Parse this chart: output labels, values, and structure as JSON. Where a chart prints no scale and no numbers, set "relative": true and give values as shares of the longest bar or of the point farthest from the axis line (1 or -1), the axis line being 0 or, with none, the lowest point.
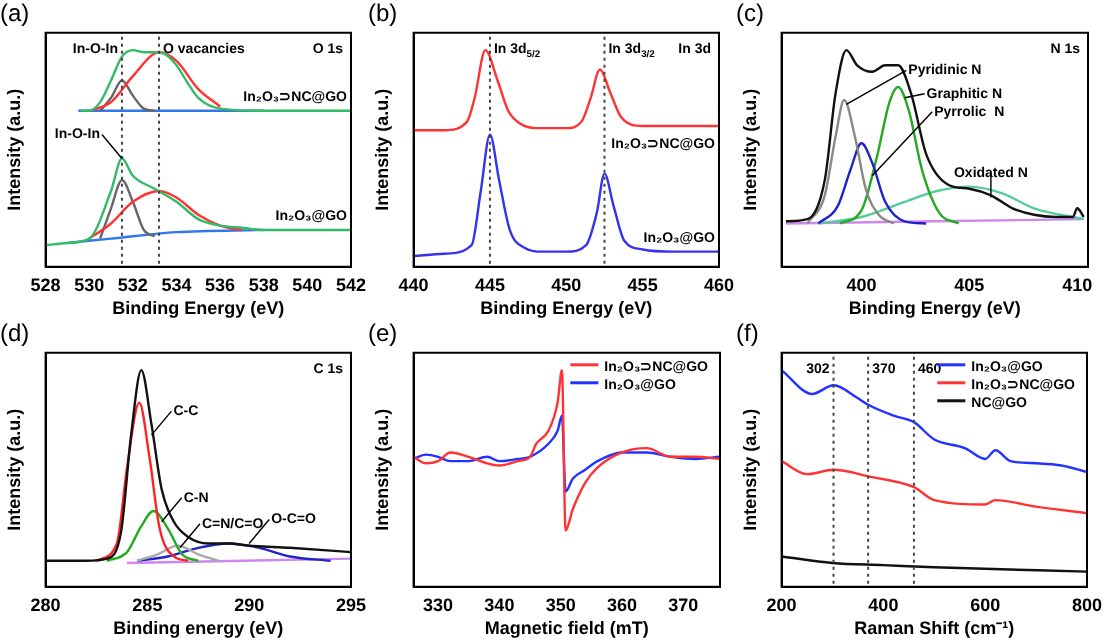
{
  "chart_data": [
    {
      "type": "line",
      "title": "(a)",
      "xlabel": "Binding Energy (eV)",
      "ylabel": "Intensity (a.u.)",
      "relative": true,
      "xlim": [
        528,
        542
      ],
      "xticks": [
        528,
        530,
        532,
        534,
        536,
        538,
        540,
        542
      ],
      "annotations": [
        "O 1s",
        {
          "text": "In-O-In",
          "x": 531.5,
          "y": 0.5
        }
      ],
      "ref_lines": [
        {
          "axis": "x",
          "value": 531.5,
          "label": "In-O-In",
          "line_style": "dotted"
        },
        {
          "axis": "x",
          "value": 533.2,
          "label": "O vacancies",
          "line_style": "dotted"
        }
      ],
      "series": [
        {
          "name": "In₂O₃⊃NC@GO",
          "color": "#33bb66",
          "x": [
            529.6,
            530,
            530.5,
            531,
            531.5,
            532,
            532.5,
            533,
            533.5,
            534,
            534.5,
            535,
            536,
            538,
            542
          ],
          "values": [
            0.72,
            0.72,
            0.76,
            0.86,
            0.97,
            1.0,
            0.99,
            0.99,
            0.98,
            0.93,
            0.85,
            0.78,
            0.73,
            0.72,
            0.72
          ]
        },
        {
          "color": "#ff3333",
          "x": [
            530,
            531,
            532,
            533.2,
            534,
            535,
            536
          ],
          "values": [
            0.72,
            0.76,
            0.88,
            0.99,
            0.95,
            0.82,
            0.74
          ]
        },
        {
          "color": "#666666",
          "x": [
            530.5,
            531,
            531.5,
            532,
            532.5,
            533
          ],
          "values": [
            0.72,
            0.78,
            0.86,
            0.79,
            0.73,
            0.72
          ]
        },
        {
          "color": "#3377ee",
          "x": [
            529.5,
            538
          ],
          "values": [
            0.72,
            0.72
          ]
        },
        {
          "name": "In₂O₃@GO",
          "color": "#33bb66",
          "x": [
            528,
            529,
            530,
            531,
            531.5,
            532,
            533,
            534,
            535,
            536,
            537,
            538,
            540,
            542
          ],
          "values": [
            0.1,
            0.11,
            0.13,
            0.35,
            0.5,
            0.42,
            0.36,
            0.3,
            0.22,
            0.19,
            0.18,
            0.17,
            0.17,
            0.17
          ]
        },
        {
          "color": "#ff3333",
          "x": [
            530,
            531,
            532,
            533.2,
            534,
            535,
            536,
            537
          ],
          "values": [
            0.13,
            0.2,
            0.3,
            0.35,
            0.32,
            0.24,
            0.19,
            0.17
          ]
        },
        {
          "color": "#666666",
          "x": [
            530.5,
            531,
            531.5,
            532,
            532.5,
            533
          ],
          "values": [
            0.13,
            0.27,
            0.4,
            0.3,
            0.17,
            0.14
          ]
        },
        {
          "color": "#3377ee",
          "x": [
            529,
            531,
            534,
            538
          ],
          "values": [
            0.11,
            0.13,
            0.16,
            0.17
          ]
        }
      ]
    },
    {
      "type": "line",
      "title": "(b)",
      "xlabel": "Binding Energy (eV)",
      "ylabel": "Intensity (a.u.)",
      "relative": true,
      "xlim": [
        440,
        460
      ],
      "xticks": [
        440,
        445,
        450,
        455,
        460
      ],
      "annotations": [
        "In 3d"
      ],
      "ref_lines": [
        {
          "axis": "x",
          "value": 445,
          "label": "In 3d$_{5/2}$",
          "line_style": "dotted"
        },
        {
          "axis": "x",
          "value": 452.5,
          "label": "In 3d$_{3/2}$",
          "line_style": "dotted"
        }
      ],
      "series": [
        {
          "name": "In₂O₃⊃NC@GO",
          "color": "#ff3333",
          "x": [
            440,
            442,
            443.5,
            444,
            444.7,
            445.5,
            446.2,
            447,
            448,
            450,
            451,
            451.6,
            452.2,
            452.9,
            453.6,
            455,
            457,
            460
          ],
          "values": [
            0.63,
            0.63,
            0.67,
            0.78,
            1.0,
            0.86,
            0.72,
            0.66,
            0.64,
            0.64,
            0.67,
            0.78,
            0.91,
            0.8,
            0.69,
            0.65,
            0.65,
            0.65
          ]
        },
        {
          "name": "In₂O₃@GO",
          "color": "#3333ee",
          "x": [
            440,
            442,
            443.8,
            444.4,
            445,
            445.6,
            446.3,
            447.2,
            448.5,
            450,
            451.3,
            452,
            452.5,
            453.1,
            453.8,
            455,
            457,
            460
          ],
          "values": [
            0.05,
            0.06,
            0.1,
            0.35,
            0.61,
            0.4,
            0.17,
            0.09,
            0.07,
            0.07,
            0.1,
            0.25,
            0.43,
            0.28,
            0.12,
            0.08,
            0.07,
            0.07
          ]
        }
      ]
    },
    {
      "type": "line",
      "title": "(c)",
      "xlabel": "Binding Energy (eV)",
      "ylabel": "Intensity (a.u.)",
      "relative": true,
      "xlim": [
        396.3,
        410.5
      ],
      "xticks": [
        400,
        405,
        410
      ],
      "annotations": [
        "N 1s",
        {
          "text": "Pyridinic N",
          "x": 399.3,
          "y": 0.75
        },
        {
          "text": "Graphitic N",
          "x": 402,
          "y": 0.78
        },
        {
          "text": "Pyrrolic  N",
          "x": 400.5,
          "y": 0.42
        },
        {
          "text": "Oxidated N",
          "x": 406,
          "y": 0.32
        }
      ],
      "series": [
        {
          "color": "#111111",
          "x": [
            396.5,
            397.5,
            398.3,
            398.8,
            399.3,
            399.8,
            400.5,
            401.1,
            401.7,
            402.3,
            403,
            404,
            405,
            406,
            407,
            408,
            409,
            409.8,
            410,
            410.3
          ],
          "values": [
            0.21,
            0.22,
            0.4,
            0.8,
            1.0,
            0.93,
            0.9,
            0.93,
            0.93,
            0.8,
            0.52,
            0.38,
            0.36,
            0.33,
            0.27,
            0.24,
            0.23,
            0.23,
            0.27,
            0.23
          ]
        },
        {
          "color": "#888888",
          "x": [
            397.5,
            398.3,
            398.8,
            399.2,
            399.7,
            400.2,
            400.8,
            401.5
          ],
          "values": [
            0.2,
            0.33,
            0.6,
            0.77,
            0.6,
            0.36,
            0.24,
            0.2
          ]
        },
        {
          "color": "#2222cc",
          "x": [
            398,
            398.9,
            399.5,
            400,
            400.5,
            401.1,
            402,
            403
          ],
          "values": [
            0.2,
            0.28,
            0.45,
            0.57,
            0.48,
            0.3,
            0.21,
            0.2
          ]
        },
        {
          "color": "#22aa22",
          "x": [
            399,
            400,
            400.7,
            401.3,
            401.7,
            402.2,
            402.8,
            403.6,
            404.5
          ],
          "values": [
            0.2,
            0.26,
            0.5,
            0.76,
            0.83,
            0.72,
            0.45,
            0.25,
            0.2
          ]
        },
        {
          "color": "#55cc99",
          "x": [
            398,
            400,
            402,
            403.5,
            405,
            406.5,
            408,
            410.3
          ],
          "values": [
            0.2,
            0.23,
            0.3,
            0.35,
            0.37,
            0.34,
            0.27,
            0.22
          ]
        },
        {
          "color": "#cc88ee",
          "x": [
            396.5,
            410.3
          ],
          "values": [
            0.2,
            0.22
          ]
        }
      ]
    },
    {
      "type": "line",
      "title": "(d)",
      "xlabel": "Binding energy (eV)",
      "ylabel": "Intensity (a.u.)",
      "relative": true,
      "xlim": [
        280,
        295
      ],
      "xticks": [
        280,
        285,
        290,
        295
      ],
      "annotations": [
        "C 1s",
        {
          "text": "C-C",
          "x": 285.2,
          "y": 0.7
        },
        {
          "text": "C-N",
          "x": 285.7,
          "y": 0.3
        },
        {
          "text": "C=N/C=O",
          "x": 286.6,
          "y": 0.18
        },
        {
          "text": "O-C=O",
          "x": 290,
          "y": 0.2
        }
      ],
      "series": [
        {
          "color": "#111111",
          "x": [
            280,
            282,
            283,
            283.7,
            284.2,
            284.7,
            285.2,
            285.7,
            286.3,
            287,
            288,
            289,
            290,
            292,
            295
          ],
          "values": [
            0.12,
            0.12,
            0.13,
            0.25,
            0.7,
            1.0,
            0.75,
            0.45,
            0.3,
            0.23,
            0.2,
            0.2,
            0.19,
            0.18,
            0.16
          ]
        },
        {
          "color": "#ff2222",
          "x": [
            282.5,
            283.5,
            284,
            284.6,
            285.1,
            285.6,
            286.3,
            287
          ],
          "values": [
            0.12,
            0.2,
            0.55,
            0.85,
            0.6,
            0.27,
            0.14,
            0.12
          ]
        },
        {
          "color": "#22aa22",
          "x": [
            283,
            284,
            284.7,
            285.3,
            286,
            286.7,
            287.5
          ],
          "values": [
            0.12,
            0.16,
            0.28,
            0.35,
            0.27,
            0.15,
            0.12
          ]
        },
        {
          "color": "#aaaaaa",
          "x": [
            284.5,
            285.5,
            286.5,
            287.5,
            288.5
          ],
          "values": [
            0.12,
            0.15,
            0.19,
            0.15,
            0.12
          ]
        },
        {
          "color": "#2222cc",
          "x": [
            284.5,
            286,
            287.5,
            289,
            290.5,
            292,
            294
          ],
          "values": [
            0.12,
            0.14,
            0.18,
            0.2,
            0.18,
            0.14,
            0.12
          ]
        },
        {
          "color": "#cc88ee",
          "x": [
            284,
            295
          ],
          "values": [
            0.11,
            0.13
          ]
        }
      ]
    },
    {
      "type": "line",
      "title": "(e)",
      "xlabel": "Magnetic field (mT)",
      "ylabel": "Intensity (a.u.)",
      "relative": true,
      "xlim": [
        326,
        376
      ],
      "xticks": [
        330,
        340,
        350,
        360,
        370
      ],
      "legend": "top right",
      "series": [
        {
          "name": "In₂O₃⊃NC@GO",
          "color": "#ff3333",
          "x": [
            326,
            328,
            330,
            332,
            335,
            338,
            340,
            343,
            345,
            346,
            348,
            349.5,
            350.2,
            350.8,
            352,
            354,
            356,
            360,
            364,
            368,
            372,
            376
          ],
          "values": [
            0.6,
            0.57,
            0.58,
            0.62,
            0.6,
            0.57,
            0.56,
            0.58,
            0.6,
            0.66,
            0.72,
            0.85,
            1.0,
            0.26,
            0.36,
            0.48,
            0.55,
            0.62,
            0.64,
            0.6,
            0.6,
            0.59
          ]
        },
        {
          "name": "In₂O₃@GO",
          "color": "#2233ff",
          "x": [
            326,
            328,
            330,
            332,
            335,
            338,
            340,
            343,
            345,
            348,
            349.5,
            350.2,
            350.8,
            352,
            354,
            356,
            360,
            364,
            368,
            372,
            376
          ],
          "values": [
            0.59,
            0.61,
            0.6,
            0.58,
            0.58,
            0.6,
            0.58,
            0.59,
            0.6,
            0.66,
            0.72,
            0.79,
            0.44,
            0.5,
            0.54,
            0.58,
            0.62,
            0.62,
            0.6,
            0.59,
            0.6
          ]
        }
      ]
    },
    {
      "type": "line",
      "title": "(f)",
      "xlabel": "Raman Shift (cm⁻¹)",
      "ylabel": "Intensity (a.u.)",
      "relative": true,
      "xlim": [
        200,
        800
      ],
      "xticks": [
        200,
        400,
        600,
        800
      ],
      "legend": "top right",
      "ref_lines": [
        {
          "axis": "x",
          "value": 302,
          "label": "302",
          "line_style": "dotted"
        },
        {
          "axis": "x",
          "value": 370,
          "label": "370",
          "line_style": "dotted"
        },
        {
          "axis": "x",
          "value": 460,
          "label": "460",
          "line_style": "dotted"
        }
      ],
      "series": [
        {
          "name": "In₂O₃@GO",
          "color": "#2233ff",
          "x": [
            200,
            260,
            302,
            350,
            370,
            420,
            460,
            500,
            560,
            600,
            620,
            650,
            700,
            750,
            800
          ],
          "values": [
            1.0,
            0.89,
            0.93,
            0.87,
            0.84,
            0.79,
            0.76,
            0.68,
            0.64,
            0.59,
            0.63,
            0.58,
            0.57,
            0.56,
            0.53
          ]
        },
        {
          "name": "In₂O₃⊃NC@GO",
          "color": "#ff3333",
          "x": [
            200,
            250,
            302,
            370,
            460,
            500,
            600,
            620,
            700,
            800
          ],
          "values": [
            0.58,
            0.52,
            0.54,
            0.51,
            0.46,
            0.4,
            0.38,
            0.4,
            0.37,
            0.34
          ]
        },
        {
          "name": "NC@GO",
          "color": "#111111",
          "x": [
            200,
            300,
            400,
            500,
            800
          ],
          "values": [
            0.14,
            0.11,
            0.1,
            0.09,
            0.07
          ]
        }
      ]
    }
  ]
}
